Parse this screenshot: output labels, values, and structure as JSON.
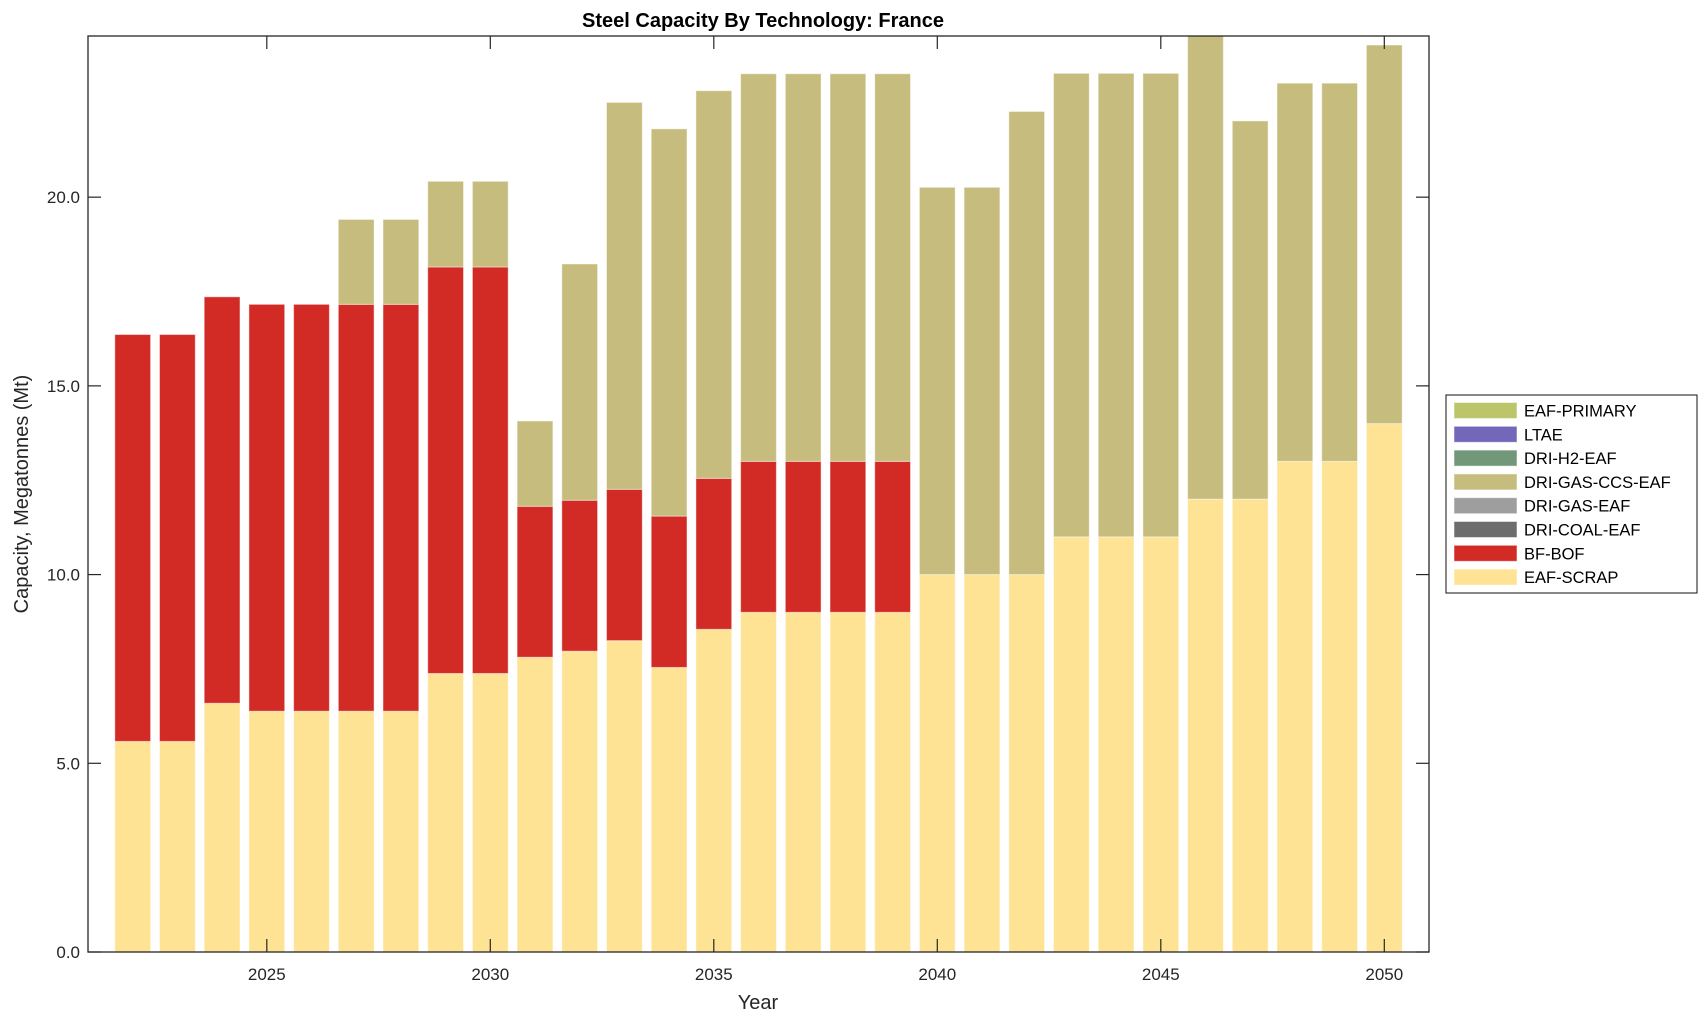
{
  "chart_data": {
    "type": "bar",
    "stacked": true,
    "title": "Steel Capacity By Technology: France",
    "xlabel": "Year",
    "ylabel": "Capacity, Megatonnes (Mt)",
    "xlim": [
      2021,
      2051
    ],
    "ylim": [
      0,
      24.27
    ],
    "xticks": [
      2025,
      2030,
      2035,
      2040,
      2045,
      2050
    ],
    "xtick_labels": [
      "2025",
      "2030",
      "2035",
      "2040",
      "2045",
      "2050"
    ],
    "yticks": [
      0,
      5,
      10,
      15,
      20
    ],
    "ytick_labels": [
      "0.0",
      "5.0",
      "10.0",
      "15.0",
      "20.0"
    ],
    "grid": false,
    "legend_position": "right",
    "bar_width": 0.8,
    "x": [
      2022,
      2023,
      2024,
      2025,
      2026,
      2027,
      2028,
      2029,
      2030,
      2031,
      2032,
      2033,
      2034,
      2035,
      2036,
      2037,
      2038,
      2039,
      2040,
      2041,
      2042,
      2043,
      2044,
      2045,
      2046,
      2047,
      2048,
      2049,
      2050
    ],
    "series": [
      {
        "name": "EAF-SCRAP",
        "color": "#fee394",
        "values": [
          5.58,
          5.58,
          6.59,
          6.38,
          6.38,
          6.38,
          6.38,
          7.38,
          7.38,
          7.81,
          7.97,
          8.25,
          7.54,
          8.55,
          9.0,
          9.0,
          9.0,
          9.0,
          10.0,
          10.0,
          10.0,
          11.0,
          11.0,
          11.0,
          12.0,
          12.0,
          13.0,
          13.0,
          14.0
        ]
      },
      {
        "name": "BF-BOF",
        "color": "#d22b25",
        "values": [
          10.78,
          10.78,
          10.77,
          10.78,
          10.78,
          10.78,
          10.78,
          10.77,
          10.77,
          4.0,
          4.0,
          4.01,
          4.01,
          4.0,
          4.0,
          4.0,
          4.0,
          4.0,
          0,
          0,
          0,
          0,
          0,
          0,
          0,
          0,
          0,
          0,
          0
        ]
      },
      {
        "name": "DRI-COAL-EAF",
        "color": "#6d6d6d",
        "values": [
          0,
          0,
          0,
          0,
          0,
          0,
          0,
          0,
          0,
          0,
          0,
          0,
          0,
          0,
          0,
          0,
          0,
          0,
          0,
          0,
          0,
          0,
          0,
          0,
          0,
          0,
          0,
          0,
          0
        ]
      },
      {
        "name": "DRI-GAS-EAF",
        "color": "#9e9e9e",
        "values": [
          0,
          0,
          0,
          0,
          0,
          0,
          0,
          0,
          0,
          0,
          0,
          0,
          0,
          0,
          0,
          0,
          0,
          0,
          0,
          0,
          0,
          0,
          0,
          0,
          0,
          0,
          0,
          0,
          0
        ]
      },
      {
        "name": "DRI-GAS-CCS-EAF",
        "color": "#c6bc7d",
        "values": [
          0,
          0,
          0,
          0,
          0,
          2.25,
          2.25,
          2.27,
          2.27,
          2.26,
          6.26,
          10.25,
          10.26,
          10.27,
          10.27,
          10.27,
          10.27,
          10.27,
          10.26,
          10.26,
          12.27,
          12.28,
          12.28,
          12.28,
          12.5,
          10.02,
          10.02,
          10.02,
          10.03
        ]
      },
      {
        "name": "DRI-H2-EAF",
        "color": "#739779",
        "values": [
          0,
          0,
          0,
          0,
          0,
          0,
          0,
          0,
          0,
          0,
          0,
          0,
          0,
          0,
          0,
          0,
          0,
          0,
          0,
          0,
          0,
          0,
          0,
          0,
          0,
          0,
          0,
          0,
          0
        ]
      },
      {
        "name": "LTAE",
        "color": "#7367b9",
        "values": [
          0,
          0,
          0,
          0,
          0,
          0,
          0,
          0,
          0,
          0,
          0,
          0,
          0,
          0,
          0,
          0,
          0,
          0,
          0,
          0,
          0,
          0,
          0,
          0,
          0,
          0,
          0,
          0,
          0
        ]
      },
      {
        "name": "EAF-PRIMARY",
        "color": "#bdc56b",
        "values": [
          0,
          0,
          0,
          0,
          0,
          0,
          0,
          0,
          0,
          0,
          0,
          0,
          0,
          0,
          0,
          0,
          0,
          0,
          0,
          0,
          0,
          0,
          0,
          0,
          0,
          0,
          0,
          0,
          0
        ]
      }
    ],
    "legend": [
      {
        "label": "EAF-PRIMARY",
        "color": "#bdc56b"
      },
      {
        "label": "LTAE",
        "color": "#7367b9"
      },
      {
        "label": "DRI-H2-EAF",
        "color": "#739779"
      },
      {
        "label": "DRI-GAS-CCS-EAF",
        "color": "#c6bc7d"
      },
      {
        "label": "DRI-GAS-EAF",
        "color": "#9e9e9e"
      },
      {
        "label": "DRI-COAL-EAF",
        "color": "#6d6d6d"
      },
      {
        "label": "BF-BOF",
        "color": "#d22b25"
      },
      {
        "label": "EAF-SCRAP",
        "color": "#fee394"
      }
    ]
  }
}
